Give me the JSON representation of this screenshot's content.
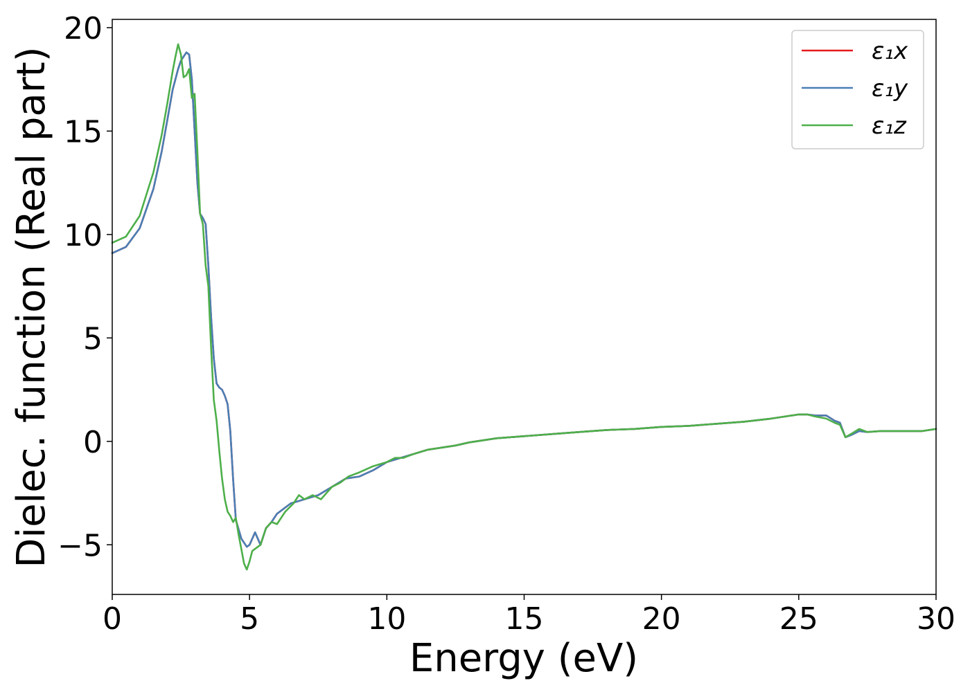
{
  "chart_data": {
    "type": "line",
    "title": "",
    "xlabel": "Energy (eV)",
    "ylabel": "Dielec. function (Real part)",
    "xlim": [
      0,
      30
    ],
    "ylim": [
      -7.4,
      20.4
    ],
    "xticks": [
      0,
      5,
      10,
      15,
      20,
      25,
      30
    ],
    "yticks": [
      -5,
      0,
      5,
      10,
      15,
      20
    ],
    "xtick_labels": [
      "0",
      "5",
      "10",
      "15",
      "20",
      "25",
      "30"
    ],
    "ytick_labels": [
      "−5",
      "0",
      "5",
      "10",
      "15",
      "20"
    ],
    "grid": false,
    "legend_position": "top-right",
    "series": [
      {
        "name": "ε₁x",
        "color": "#e41a1c",
        "x": [
          0,
          0.5,
          1.0,
          1.5,
          1.8,
          2.0,
          2.2,
          2.4,
          2.5,
          2.6,
          2.7,
          2.8,
          2.9,
          3.0,
          3.1,
          3.2,
          3.3,
          3.4,
          3.5,
          3.6,
          3.7,
          3.8,
          3.9,
          4.0,
          4.1,
          4.2,
          4.3,
          4.4,
          4.5,
          4.7,
          4.9,
          5.0,
          5.2,
          5.4,
          5.6,
          5.8,
          6.0,
          6.5,
          7.0,
          7.5,
          8.0,
          8.5,
          9.0,
          9.5,
          10.0,
          10.5,
          11.0,
          11.5,
          12.0,
          12.5,
          13.0,
          13.5,
          14.0,
          14.5,
          15.0,
          16.0,
          17.0,
          18.0,
          19.0,
          20.0,
          21.0,
          22.0,
          23.0,
          24.0,
          24.5,
          25.0,
          25.3,
          25.6,
          26.0,
          26.3,
          26.5,
          26.7,
          26.9,
          27.2,
          27.5,
          28.0,
          28.5,
          29.0,
          29.5,
          30.0
        ],
        "y": [
          9.1,
          9.4,
          10.3,
          12.2,
          14.0,
          15.5,
          17.0,
          18.0,
          18.4,
          18.6,
          18.8,
          18.7,
          17.5,
          15.0,
          12.5,
          11.0,
          10.8,
          10.5,
          8.5,
          6.0,
          4.0,
          2.8,
          2.6,
          2.5,
          2.2,
          1.8,
          0.5,
          -1.8,
          -3.8,
          -4.7,
          -5.1,
          -5.0,
          -4.4,
          -5.0,
          -4.2,
          -3.9,
          -3.5,
          -3.0,
          -2.8,
          -2.6,
          -2.2,
          -1.8,
          -1.7,
          -1.4,
          -1.0,
          -0.8,
          -0.6,
          -0.4,
          -0.3,
          -0.2,
          -0.05,
          0.05,
          0.15,
          0.2,
          0.25,
          0.35,
          0.45,
          0.55,
          0.6,
          0.7,
          0.75,
          0.85,
          0.95,
          1.1,
          1.2,
          1.3,
          1.3,
          1.25,
          1.25,
          1.0,
          0.9,
          0.2,
          0.3,
          0.5,
          0.45,
          0.5,
          0.5,
          0.5,
          0.5,
          0.6
        ]
      },
      {
        "name": "ε₁y",
        "color": "#4a7fb5",
        "x": [
          0,
          0.5,
          1.0,
          1.5,
          1.8,
          2.0,
          2.2,
          2.4,
          2.5,
          2.6,
          2.7,
          2.8,
          2.9,
          3.0,
          3.1,
          3.2,
          3.3,
          3.4,
          3.5,
          3.6,
          3.7,
          3.8,
          3.9,
          4.0,
          4.1,
          4.2,
          4.3,
          4.4,
          4.5,
          4.7,
          4.9,
          5.0,
          5.2,
          5.4,
          5.6,
          5.8,
          6.0,
          6.5,
          7.0,
          7.5,
          8.0,
          8.5,
          9.0,
          9.5,
          10.0,
          10.5,
          11.0,
          11.5,
          12.0,
          12.5,
          13.0,
          13.5,
          14.0,
          14.5,
          15.0,
          16.0,
          17.0,
          18.0,
          19.0,
          20.0,
          21.0,
          22.0,
          23.0,
          24.0,
          24.5,
          25.0,
          25.3,
          25.6,
          26.0,
          26.3,
          26.5,
          26.7,
          26.9,
          27.2,
          27.5,
          28.0,
          28.5,
          29.0,
          29.5,
          30.0
        ],
        "y": [
          9.1,
          9.4,
          10.3,
          12.2,
          14.0,
          15.5,
          17.0,
          18.0,
          18.4,
          18.6,
          18.8,
          18.7,
          17.5,
          15.0,
          12.5,
          11.0,
          10.8,
          10.5,
          8.5,
          6.0,
          4.0,
          2.8,
          2.6,
          2.5,
          2.2,
          1.8,
          0.5,
          -1.8,
          -3.8,
          -4.7,
          -5.1,
          -5.0,
          -4.4,
          -5.0,
          -4.2,
          -3.9,
          -3.5,
          -3.0,
          -2.8,
          -2.6,
          -2.2,
          -1.8,
          -1.7,
          -1.4,
          -1.0,
          -0.8,
          -0.6,
          -0.4,
          -0.3,
          -0.2,
          -0.05,
          0.05,
          0.15,
          0.2,
          0.25,
          0.35,
          0.45,
          0.55,
          0.6,
          0.7,
          0.75,
          0.85,
          0.95,
          1.1,
          1.2,
          1.3,
          1.3,
          1.25,
          1.25,
          1.0,
          0.9,
          0.2,
          0.3,
          0.5,
          0.45,
          0.5,
          0.5,
          0.5,
          0.5,
          0.6
        ]
      },
      {
        "name": "ε₁z",
        "color": "#4daf4a",
        "x": [
          0,
          0.5,
          1.0,
          1.5,
          1.8,
          2.0,
          2.2,
          2.3,
          2.4,
          2.5,
          2.6,
          2.7,
          2.8,
          2.9,
          3.0,
          3.1,
          3.2,
          3.3,
          3.4,
          3.5,
          3.6,
          3.7,
          3.8,
          3.9,
          4.0,
          4.1,
          4.2,
          4.3,
          4.4,
          4.5,
          4.6,
          4.7,
          4.8,
          4.9,
          5.0,
          5.1,
          5.2,
          5.4,
          5.6,
          5.8,
          6.0,
          6.3,
          6.6,
          6.8,
          7.0,
          7.3,
          7.6,
          8.0,
          8.3,
          8.6,
          9.0,
          9.5,
          10.0,
          10.3,
          10.6,
          11.0,
          11.5,
          12.0,
          12.5,
          13.0,
          13.5,
          14.0,
          14.5,
          15.0,
          16.0,
          17.0,
          18.0,
          19.0,
          20.0,
          21.0,
          22.0,
          23.0,
          24.0,
          24.5,
          25.0,
          25.3,
          25.6,
          26.0,
          26.3,
          26.5,
          26.7,
          26.9,
          27.2,
          27.5,
          28.0,
          28.5,
          29.0,
          29.5,
          30.0
        ],
        "y": [
          9.6,
          9.9,
          10.9,
          13.0,
          14.8,
          16.3,
          17.9,
          18.6,
          19.2,
          18.7,
          17.6,
          17.7,
          18.0,
          16.6,
          16.8,
          14.0,
          11.0,
          10.5,
          8.5,
          7.5,
          4.5,
          2.0,
          1.0,
          -0.5,
          -1.8,
          -2.8,
          -3.4,
          -3.6,
          -3.9,
          -3.7,
          -4.5,
          -5.2,
          -5.9,
          -6.2,
          -5.8,
          -5.3,
          -5.2,
          -5.0,
          -4.2,
          -3.9,
          -4.0,
          -3.4,
          -3.0,
          -2.6,
          -2.8,
          -2.6,
          -2.8,
          -2.2,
          -2.0,
          -1.7,
          -1.5,
          -1.2,
          -1.0,
          -0.8,
          -0.8,
          -0.6,
          -0.4,
          -0.3,
          -0.2,
          -0.05,
          0.05,
          0.15,
          0.2,
          0.25,
          0.35,
          0.45,
          0.55,
          0.6,
          0.7,
          0.75,
          0.85,
          0.95,
          1.1,
          1.2,
          1.3,
          1.3,
          1.2,
          1.1,
          0.9,
          0.8,
          0.2,
          0.35,
          0.6,
          0.45,
          0.5,
          0.5,
          0.5,
          0.5,
          0.6
        ]
      }
    ]
  }
}
